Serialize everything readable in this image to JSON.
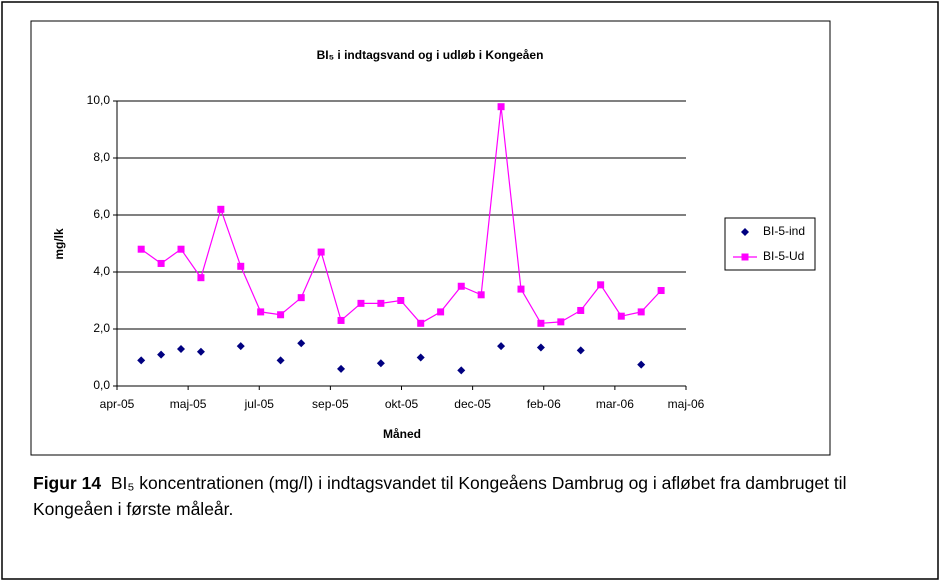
{
  "chart_data": {
    "type": "line",
    "title": "BI₅ i indtagsvand og i udløb i Kongeåen",
    "x_label": "Måned",
    "y_label": "mg/lk",
    "x": [
      0.34,
      0.62,
      0.9,
      1.18,
      1.46,
      1.74,
      2.02,
      2.3,
      2.59,
      2.87,
      3.15,
      3.43,
      3.71,
      3.99,
      4.27,
      4.55,
      4.84,
      5.12,
      5.4,
      5.68,
      5.96,
      6.24,
      6.52,
      6.8,
      7.09,
      7.37,
      7.65
    ],
    "xlim": [
      0,
      8
    ],
    "xticks": [
      {
        "value": 0,
        "label": "apr-05"
      },
      {
        "value": 1,
        "label": "maj-05"
      },
      {
        "value": 2,
        "label": "jul-05"
      },
      {
        "value": 3,
        "label": "sep-05"
      },
      {
        "value": 4,
        "label": "okt-05"
      },
      {
        "value": 5,
        "label": "dec-05"
      },
      {
        "value": 6,
        "label": "feb-06"
      },
      {
        "value": 7,
        "label": "mar-06"
      },
      {
        "value": 8,
        "label": "maj-06"
      }
    ],
    "ylim": [
      0,
      10
    ],
    "yticks": [
      {
        "value": 0,
        "label": "0,0"
      },
      {
        "value": 2,
        "label": "2,0"
      },
      {
        "value": 4,
        "label": "4,0"
      },
      {
        "value": 6,
        "label": "6,0"
      },
      {
        "value": 8,
        "label": "8,0"
      },
      {
        "value": 10,
        "label": "10,0"
      }
    ],
    "grid": true,
    "legend": "right",
    "series": [
      {
        "name": "BI-5-ind",
        "color": "#000080",
        "marker": "diamond",
        "line": false,
        "values": [
          0.9,
          1.1,
          1.3,
          1.2,
          null,
          1.4,
          null,
          0.9,
          1.5,
          null,
          0.6,
          null,
          0.8,
          null,
          1.0,
          null,
          0.55,
          null,
          1.4,
          null,
          1.35,
          null,
          1.25,
          null,
          null,
          0.75,
          null
        ]
      },
      {
        "name": "BI-5-Ud",
        "color": "#ff00ff",
        "marker": "square",
        "line": true,
        "values": [
          4.8,
          4.3,
          4.8,
          3.8,
          6.2,
          4.2,
          2.6,
          2.5,
          3.1,
          4.7,
          2.3,
          2.9,
          2.9,
          3.0,
          2.2,
          2.6,
          3.5,
          3.2,
          9.8,
          3.4,
          2.2,
          2.25,
          2.65,
          3.55,
          2.45,
          2.6,
          3.35
        ]
      }
    ]
  },
  "caption": {
    "label": "Figur 14",
    "text": "BI₅ koncentrationen (mg/l) i indtagsvandet til Kongeåens Dambrug og i afløbet fra dambruget til Kongeåen i første måleår."
  }
}
